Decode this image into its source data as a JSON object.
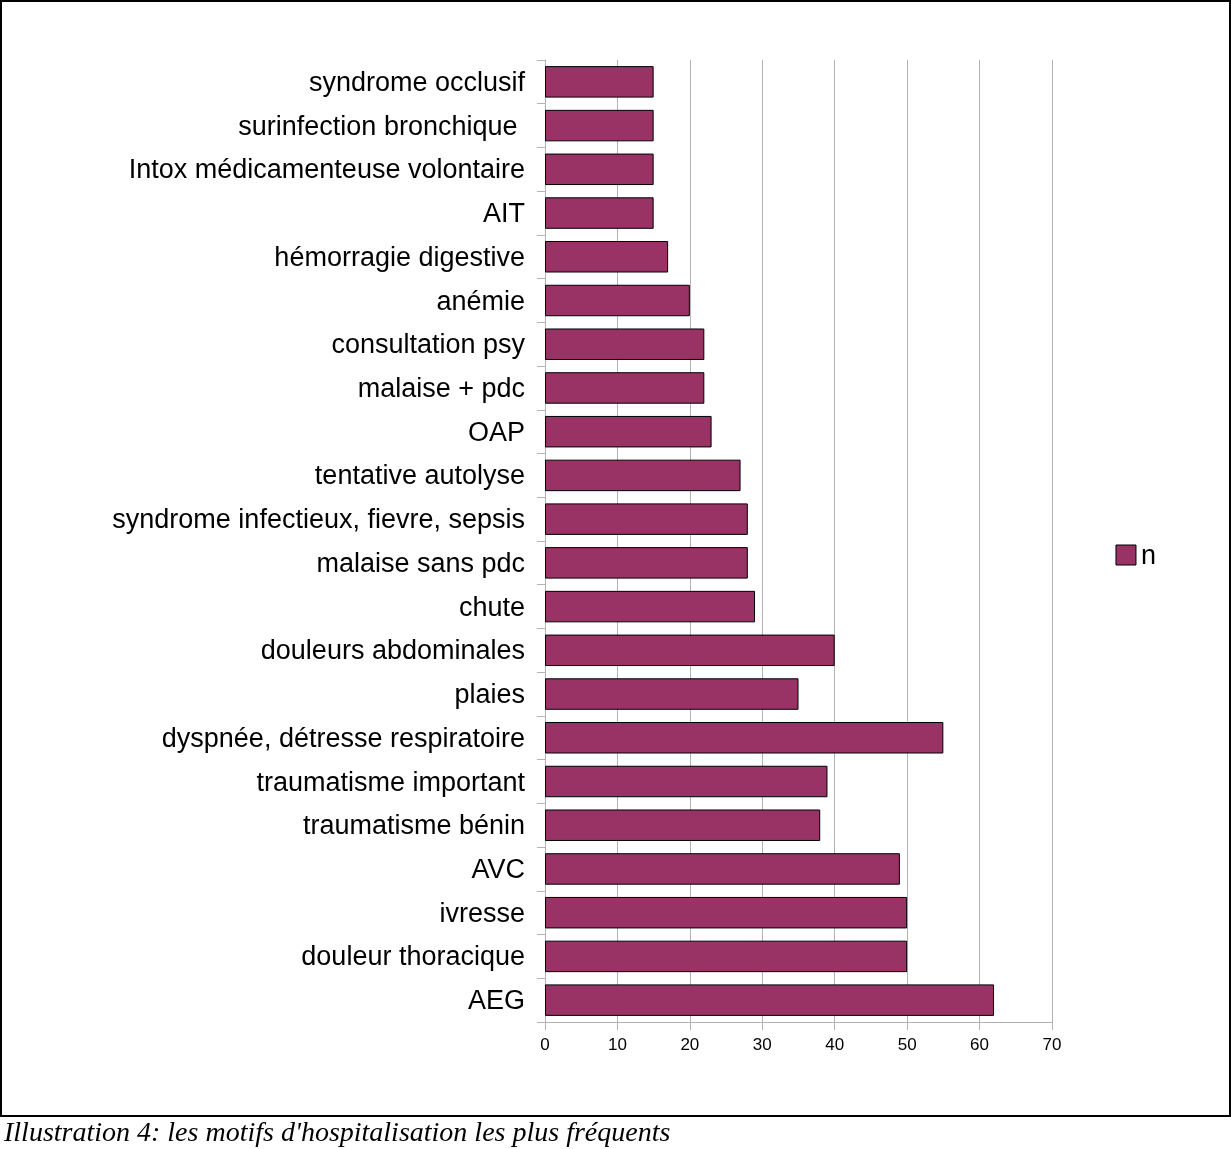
{
  "chart_data": {
    "type": "bar",
    "orientation": "horizontal",
    "categories": [
      "syndrome occlusif",
      "surinfection bronchique ",
      "Intox médicamenteuse volontaire",
      "AIT",
      "hémorragie digestive",
      "anémie",
      "consultation psy",
      "malaise + pdc",
      "OAP",
      "tentative autolyse",
      "syndrome infectieux, fievre, sepsis",
      "malaise sans pdc",
      "chute",
      "douleurs abdominales",
      "plaies",
      "dyspnée, détresse respiratoire",
      "traumatisme important",
      "traumatisme bénin",
      "AVC",
      "ivresse",
      "douleur thoracique",
      "AEG"
    ],
    "series": [
      {
        "name": "n",
        "color": "#993366",
        "values": [
          15,
          15,
          15,
          15,
          17,
          20,
          22,
          22,
          23,
          27,
          28,
          28,
          29,
          40,
          35,
          55,
          39,
          38,
          49,
          50,
          50,
          62
        ]
      }
    ],
    "xlim": [
      0,
      70
    ],
    "xticks": [
      0,
      10,
      20,
      30,
      40,
      50,
      60,
      70
    ],
    "grid": "x",
    "legend": "right",
    "annotations": [
      "Illustration 4: les motifs d'hospitalisation les plus fréquents"
    ]
  }
}
